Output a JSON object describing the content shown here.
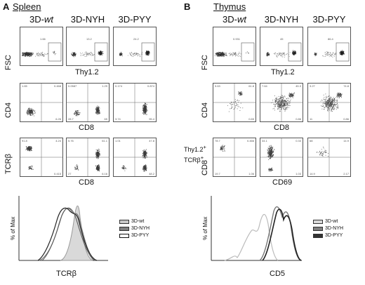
{
  "panelA": {
    "letter": "A",
    "title": "Spleen",
    "columns": [
      "3D-",
      "3D-NYH",
      "3D-PYY"
    ],
    "col1_italic": "wt",
    "row1": {
      "ylabel": "FSC",
      "xlabel": "Thy1.2",
      "gates": [
        "1.66",
        "13.2",
        "24.2"
      ]
    },
    "row2": {
      "ylabel": "CD4",
      "xlabel": "CD8",
      "quads": [
        {
          "ul": "1.65",
          "ur": "0.468",
          "ll": "",
          "lr": "6.26"
        },
        {
          "ul": "0.0587",
          "ur": "1.29",
          "ll": "28.7",
          "lr": "65"
        },
        {
          "ul": "0.174",
          "ur": "0.874",
          "ll": "3.74",
          "lr": "95.4"
        }
      ]
    },
    "row3": {
      "ylabel": "TCRβ",
      "xlabel": "CD8",
      "quads": [
        {
          "ul": "91.8",
          "ur": "4.24",
          "ll": "",
          "lr": "0.415"
        },
        {
          "ul": "5.76",
          "ur": "61.1",
          "ll": "27",
          "lr": "6.16"
        },
        {
          "ul": "1.01",
          "ur": "47.8",
          "ll": "",
          "lr": "48.2"
        }
      ]
    },
    "hist": {
      "ylabel": "% of Max",
      "xlabel": "TCRβ",
      "legend": [
        "3D-wt",
        "3D-NYH",
        "3D-PYY"
      ]
    }
  },
  "panelB": {
    "letter": "B",
    "title": "Thymus",
    "columns": [
      "3D-",
      "3D-NYH",
      "3D-PYY"
    ],
    "col1_italic": "wt",
    "row1": {
      "ylabel": "FSC",
      "xlabel": "Thy1.2",
      "gates": [
        "0.931",
        "45",
        "86.4"
      ]
    },
    "row2": {
      "ylabel": "CD4",
      "xlabel": "CD8",
      "quads": [
        {
          "ul": "5.63",
          "ur": "61.8",
          "ll": "",
          "lr": "0.65"
        },
        {
          "ul": "7.64",
          "ur": "45.3",
          "ll": "",
          "lr": "0.86"
        },
        {
          "ul": "3.27",
          "ur": "74.8",
          "ll": "11",
          "lr": "0.86"
        }
      ]
    },
    "row3": {
      "ylabel": "CD8",
      "xlabel": "CD69",
      "gate_label_line1": "Thy1.2",
      "gate_label_line2": "TCRβ",
      "quads": [
        {
          "ul": "78.7",
          "ur": "0.466",
          "ll": "19.7",
          "lr": "1.06"
        },
        {
          "ul": "34.1",
          "ur": "0.33",
          "ll": "",
          "lr": "1.03"
        },
        {
          "ul": "68",
          "ur": "14.9",
          "ll": "14.9",
          "lr": "2.17"
        }
      ]
    },
    "hist": {
      "ylabel": "% of Max",
      "xlabel": "CD5",
      "legend": [
        "3D-wt",
        "3D-NYH",
        "3D-PYY"
      ]
    }
  },
  "colors": {
    "wt": "#c8c8c8",
    "nyh": "#808080",
    "pyy": "#333333"
  }
}
